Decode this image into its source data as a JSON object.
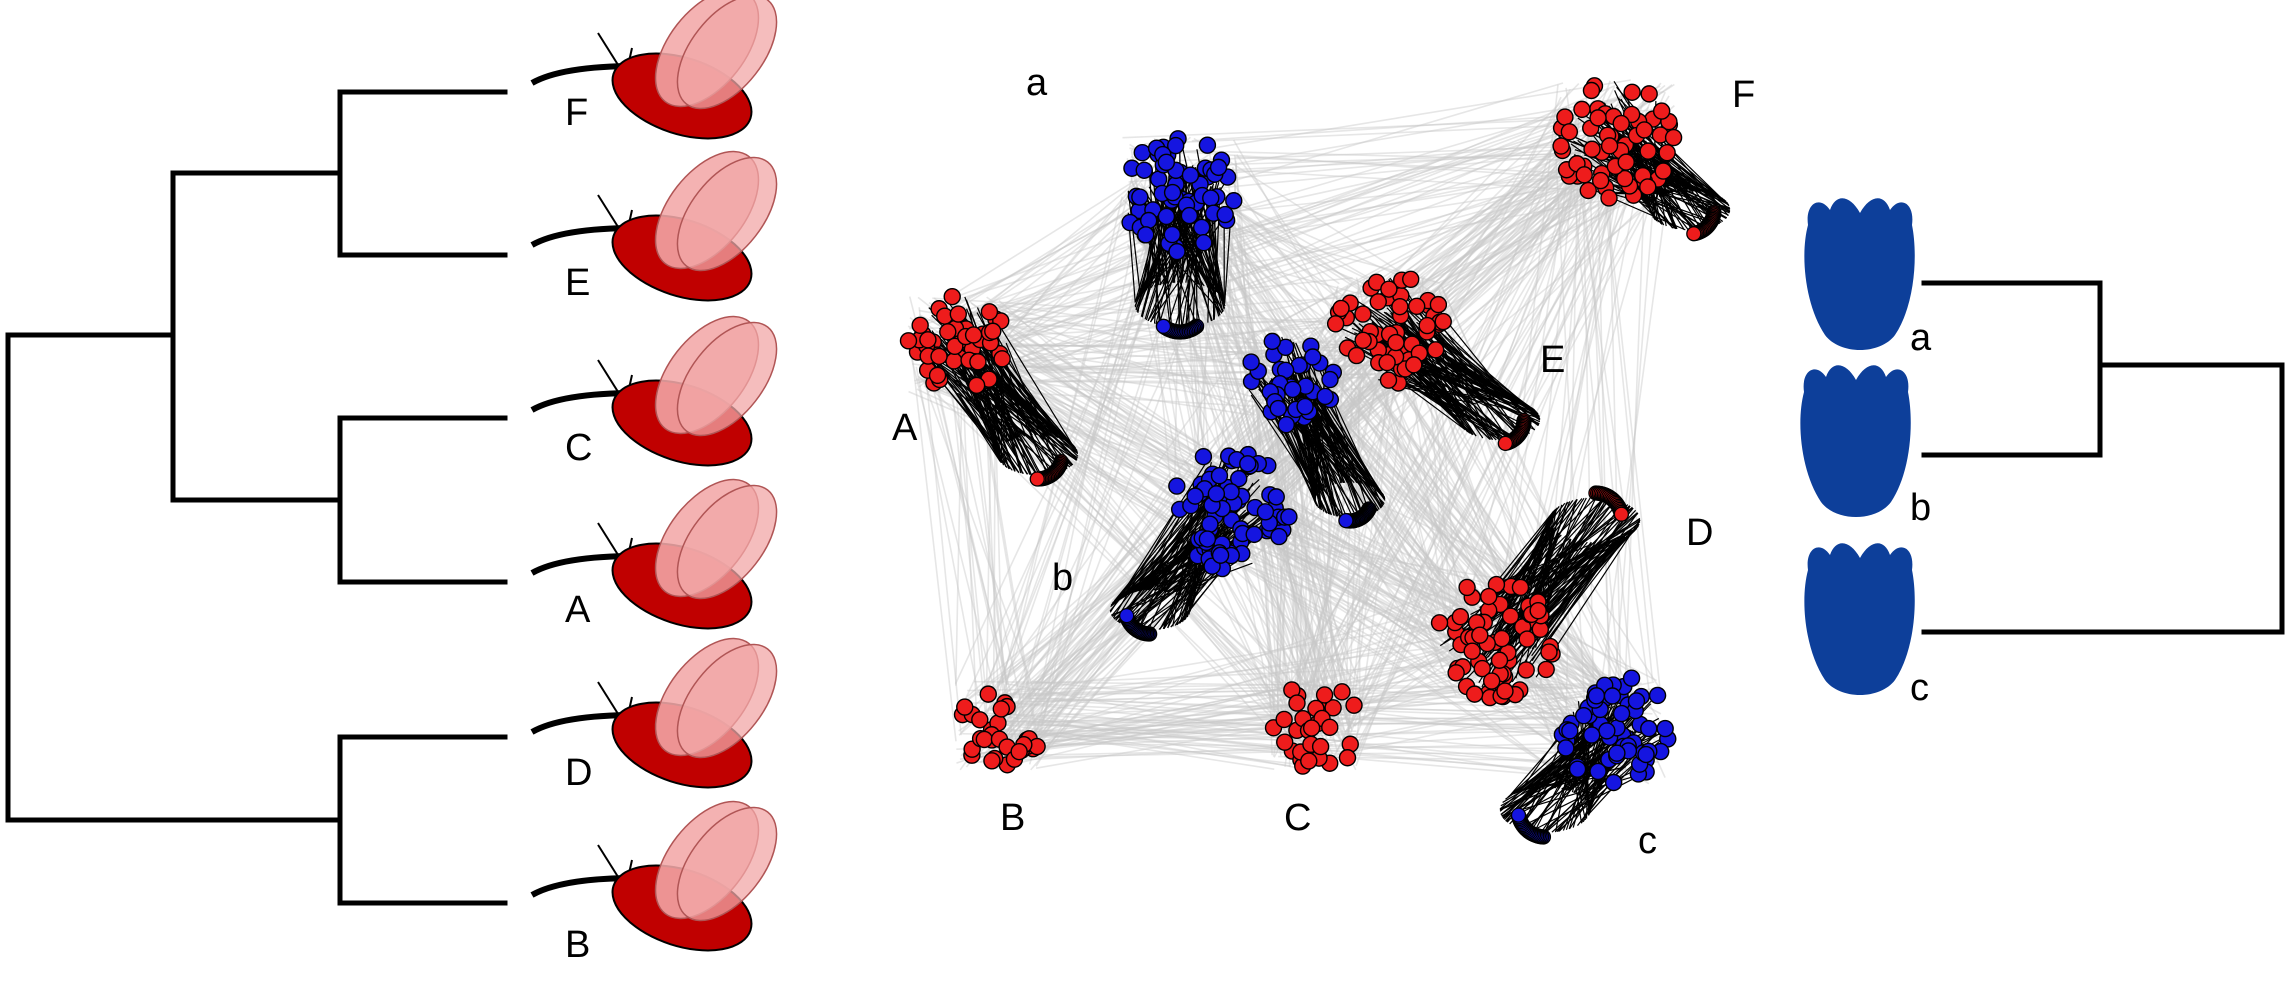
{
  "colors": {
    "pollinator_body": "#c00000",
    "pollinator_wing": "#f2a7a7",
    "plant_flower": "#0d3f9a",
    "network_red": "#ee1c1c",
    "network_blue": "#1515e0",
    "link_gray": "#c8c8c8",
    "tree_line": "#000000"
  },
  "pollinator_tree": {
    "labels": [
      "F",
      "E",
      "C",
      "A",
      "D",
      "B"
    ],
    "icon": "fly-icon"
  },
  "plant_tree": {
    "labels": [
      "a",
      "b",
      "c"
    ],
    "icon": "flower-icon"
  },
  "network": {
    "pollinator_modules": [
      "A",
      "B",
      "C",
      "D",
      "E",
      "F"
    ],
    "plant_modules": [
      "a",
      "b",
      "c"
    ]
  }
}
